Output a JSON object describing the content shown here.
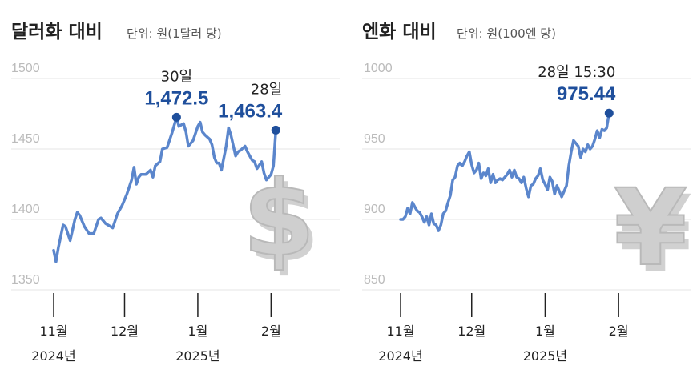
{
  "colors": {
    "line": "#5b86cc",
    "point": "#1f4f9c",
    "value": "#1f4f9c",
    "grid": "#e6e6e6",
    "symbol": "#c9c9c9"
  },
  "chart_data": [
    {
      "type": "line",
      "title": "달러화 대비",
      "unit": "단위: 원(1달러 당)",
      "symbol": "$",
      "ylim": [
        1350,
        1500
      ],
      "yticks": [
        "1500",
        "1450",
        "1400",
        "1350"
      ],
      "xticks": [
        {
          "label": "11월",
          "sub": "2024년",
          "day": 1
        },
        {
          "label": "12월",
          "sub": "",
          "day": 31
        },
        {
          "label": "1월",
          "sub": "2025년",
          "day": 62
        },
        {
          "label": "2월",
          "sub": "",
          "day": 93
        }
      ],
      "xrange": [
        1,
        120
      ],
      "series": [
        {
          "values": [
            [
              1,
              1378
            ],
            [
              2,
              1370
            ],
            [
              3,
              1380
            ],
            [
              5,
              1396
            ],
            [
              6,
              1395
            ],
            [
              8,
              1385
            ],
            [
              10,
              1400
            ],
            [
              11,
              1405
            ],
            [
              12,
              1403
            ],
            [
              14,
              1395
            ],
            [
              16,
              1390
            ],
            [
              18,
              1390
            ],
            [
              20,
              1400
            ],
            [
              21,
              1401
            ],
            [
              23,
              1397
            ],
            [
              25,
              1395
            ],
            [
              26,
              1394
            ],
            [
              28,
              1404
            ],
            [
              30,
              1410
            ],
            [
              32,
              1418
            ],
            [
              34,
              1428
            ],
            [
              35,
              1437
            ],
            [
              36,
              1425
            ],
            [
              37,
              1430
            ],
            [
              38,
              1432
            ],
            [
              40,
              1432
            ],
            [
              42,
              1435
            ],
            [
              43,
              1430
            ],
            [
              44,
              1438
            ],
            [
              46,
              1441
            ],
            [
              47,
              1450
            ],
            [
              49,
              1451
            ],
            [
              51,
              1461
            ],
            [
              53,
              1472.5
            ],
            [
              54,
              1466
            ],
            [
              56,
              1468
            ],
            [
              57,
              1462
            ],
            [
              58,
              1452
            ],
            [
              60,
              1456
            ],
            [
              62,
              1466
            ],
            [
              63,
              1469
            ],
            [
              64,
              1462
            ],
            [
              65,
              1460
            ],
            [
              67,
              1457
            ],
            [
              68,
              1453
            ],
            [
              69,
              1444
            ],
            [
              70,
              1440
            ],
            [
              71,
              1440
            ],
            [
              72,
              1435
            ],
            [
              74,
              1452
            ],
            [
              75,
              1465
            ],
            [
              76,
              1460
            ],
            [
              78,
              1445
            ],
            [
              79,
              1448
            ],
            [
              80,
              1449
            ],
            [
              82,
              1452
            ],
            [
              83,
              1448
            ],
            [
              85,
              1442
            ],
            [
              86,
              1441
            ],
            [
              87,
              1436
            ],
            [
              89,
              1441
            ],
            [
              90,
              1433
            ],
            [
              91,
              1428
            ],
            [
              93,
              1432
            ],
            [
              94,
              1438
            ],
            [
              95,
              1463.4
            ]
          ]
        }
      ],
      "annotations": [
        {
          "day": 53,
          "value": 1472.5,
          "label": "30일",
          "value_text": "1,472.5"
        },
        {
          "day": 95,
          "value": 1463.4,
          "label": "28일",
          "value_text": "1,463.4"
        }
      ]
    },
    {
      "type": "line",
      "title": "엔화 대비",
      "unit": "단위: 원(100엔 당)",
      "symbol": "¥",
      "ylim": [
        850,
        1000
      ],
      "yticks": [
        "1000",
        "950",
        "900",
        "850"
      ],
      "xticks": [
        {
          "label": "11월",
          "sub": "2024년",
          "day": 1
        },
        {
          "label": "12월",
          "sub": "",
          "day": 31
        },
        {
          "label": "1월",
          "sub": "2025년",
          "day": 62
        },
        {
          "label": "2월",
          "sub": "",
          "day": 93
        }
      ],
      "xrange": [
        1,
        120
      ],
      "series": [
        {
          "values": [
            [
              1,
              900
            ],
            [
              2,
              900
            ],
            [
              3,
              902
            ],
            [
              4,
              908
            ],
            [
              5,
              904
            ],
            [
              6,
              912
            ],
            [
              7,
              909
            ],
            [
              8,
              906
            ],
            [
              9,
              905
            ],
            [
              10,
              902
            ],
            [
              11,
              898
            ],
            [
              12,
              902
            ],
            [
              13,
              896
            ],
            [
              14,
              904
            ],
            [
              15,
              897
            ],
            [
              16,
              896
            ],
            [
              17,
              892
            ],
            [
              18,
              896
            ],
            [
              19,
              904
            ],
            [
              20,
              906
            ],
            [
              21,
              912
            ],
            [
              22,
              917
            ],
            [
              23,
              928
            ],
            [
              24,
              930
            ],
            [
              25,
              938
            ],
            [
              26,
              940
            ],
            [
              27,
              938
            ],
            [
              28,
              941
            ],
            [
              29,
              945
            ],
            [
              30,
              948
            ],
            [
              31,
              939
            ],
            [
              32,
              933
            ],
            [
              33,
              935
            ],
            [
              34,
              940
            ],
            [
              35,
              929
            ],
            [
              36,
              933
            ],
            [
              37,
              931
            ],
            [
              38,
              936
            ],
            [
              39,
              926
            ],
            [
              40,
              932
            ],
            [
              41,
              926
            ],
            [
              42,
              928
            ],
            [
              43,
              929
            ],
            [
              44,
              928
            ],
            [
              45,
              930
            ],
            [
              46,
              932
            ],
            [
              47,
              935
            ],
            [
              48,
              930
            ],
            [
              49,
              935
            ],
            [
              50,
              930
            ],
            [
              51,
              929
            ],
            [
              52,
              926
            ],
            [
              53,
              930
            ],
            [
              54,
              922
            ],
            [
              55,
              916
            ],
            [
              56,
              924
            ],
            [
              57,
              925
            ],
            [
              58,
              929
            ],
            [
              59,
              931
            ],
            [
              60,
              936
            ],
            [
              61,
              928
            ],
            [
              62,
              925
            ],
            [
              63,
              921
            ],
            [
              64,
              930
            ],
            [
              65,
              927
            ],
            [
              66,
              918
            ],
            [
              67,
              924
            ],
            [
              68,
              920
            ],
            [
              69,
              916
            ],
            [
              70,
              920
            ],
            [
              71,
              924
            ],
            [
              72,
              938
            ],
            [
              73,
              948
            ],
            [
              74,
              956
            ],
            [
              75,
              954
            ],
            [
              76,
              952
            ],
            [
              77,
              944
            ],
            [
              78,
              950
            ],
            [
              79,
              948
            ],
            [
              80,
              953
            ],
            [
              81,
              950
            ],
            [
              82,
              952
            ],
            [
              83,
              957
            ],
            [
              84,
              963
            ],
            [
              85,
              958
            ],
            [
              86,
              964
            ],
            [
              87,
              963
            ],
            [
              88,
              965
            ],
            [
              89,
              975.44
            ]
          ]
        }
      ],
      "annotations": [
        {
          "day": 89,
          "value": 975.44,
          "label": "28일 15:30",
          "value_text": "975.44"
        }
      ]
    }
  ]
}
